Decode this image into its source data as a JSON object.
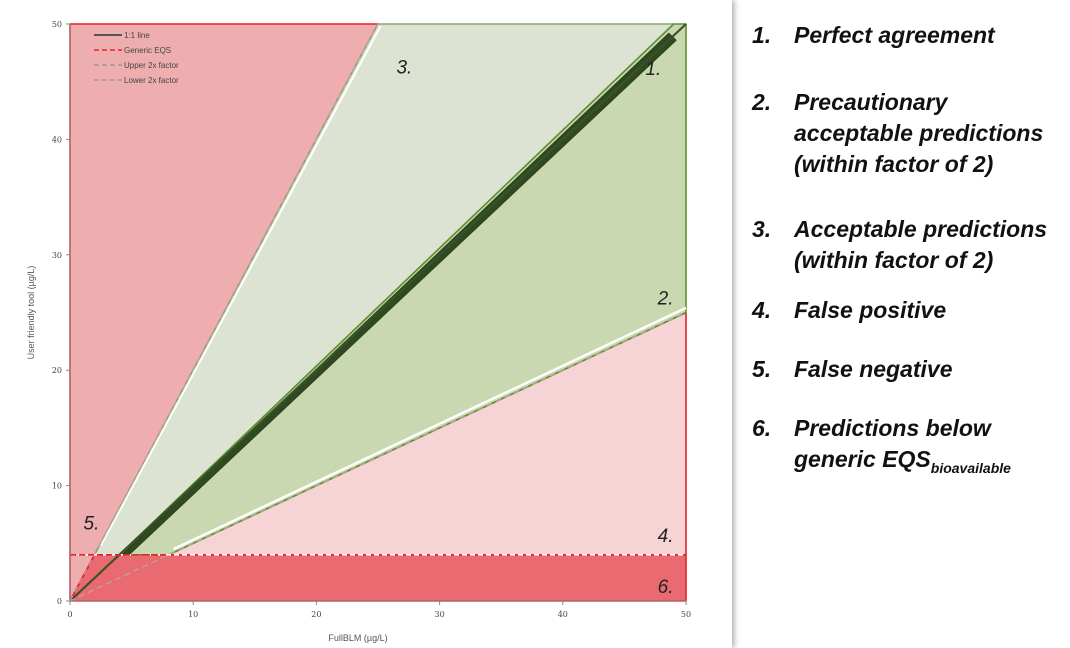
{
  "chart_data": {
    "type": "area",
    "xlabel": "FullBLM (µg/L)",
    "ylabel": "User friendly tool (µg/L)",
    "xlim": [
      0,
      50
    ],
    "ylim": [
      0,
      50
    ],
    "x_ticks": [
      "0",
      "10",
      "20",
      "30",
      "40",
      "50"
    ],
    "y_ticks": [
      "0",
      "10",
      "20",
      "30",
      "40",
      "50"
    ],
    "generic_eqs": 4,
    "legend_position": "top-left",
    "legend": [
      {
        "name": "1:1 line",
        "style": "solid",
        "color": "#555555"
      },
      {
        "name": "Generic EQS",
        "style": "dashed",
        "color": "#e8202a"
      },
      {
        "name": "Upper 2x factor",
        "style": "dashed",
        "color": "#999999"
      },
      {
        "name": "Lower 2x factor",
        "style": "dashed",
        "color": "#999999"
      }
    ],
    "series": [
      {
        "name": "1:1 line",
        "x": [
          0,
          50
        ],
        "y": [
          0,
          50
        ]
      },
      {
        "name": "Upper 2x factor",
        "x": [
          0,
          25
        ],
        "y": [
          0,
          50
        ]
      },
      {
        "name": "Lower 2x factor",
        "x": [
          0,
          50
        ],
        "y": [
          0,
          25
        ]
      },
      {
        "name": "Generic EQS",
        "x": [
          0,
          50
        ],
        "y": [
          4,
          4
        ]
      }
    ],
    "regions": [
      {
        "label": "1.",
        "color": "#2f4a20",
        "points": [
          [
            4.2,
            4
          ],
          [
            4.8,
            4
          ],
          [
            49.2,
            48.6
          ],
          [
            48.6,
            49.2
          ]
        ]
      },
      {
        "label": "2.",
        "color": "#c9d8b0",
        "points": [
          [
            4,
            4
          ],
          [
            8,
            4
          ],
          [
            50,
            25
          ],
          [
            50,
            50
          ],
          [
            49,
            50
          ]
        ]
      },
      {
        "label": "3.",
        "color": "#dde3d3",
        "points": [
          [
            2,
            4
          ],
          [
            4,
            4
          ],
          [
            49,
            50
          ],
          [
            25,
            50
          ]
        ]
      },
      {
        "label": "4.",
        "color": "#f6d3d5",
        "points": [
          [
            8,
            4
          ],
          [
            50,
            4
          ],
          [
            50,
            25
          ]
        ]
      },
      {
        "label": "5.",
        "color": "#eeaeb0",
        "points": [
          [
            0,
            0
          ],
          [
            2,
            4
          ],
          [
            25,
            50
          ],
          [
            0,
            50
          ]
        ]
      },
      {
        "label": "6.",
        "color": "#e96a70",
        "points": [
          [
            0,
            0
          ],
          [
            50,
            0
          ],
          [
            50,
            4
          ],
          [
            2,
            4
          ]
        ]
      }
    ]
  },
  "key": [
    {
      "num": "1.",
      "text": "Perfect agreement"
    },
    {
      "num": "2.",
      "text": "Precautionary acceptable predictions (within factor of 2)"
    },
    {
      "num": "3.",
      "text": "Acceptable predictions (within factor of 2)"
    },
    {
      "num": "4.",
      "text": "False positive"
    },
    {
      "num": "5.",
      "text": "False negative"
    },
    {
      "num": "6.",
      "text": "Predictions below generic EQS",
      "subscript": "bioavailable"
    }
  ]
}
